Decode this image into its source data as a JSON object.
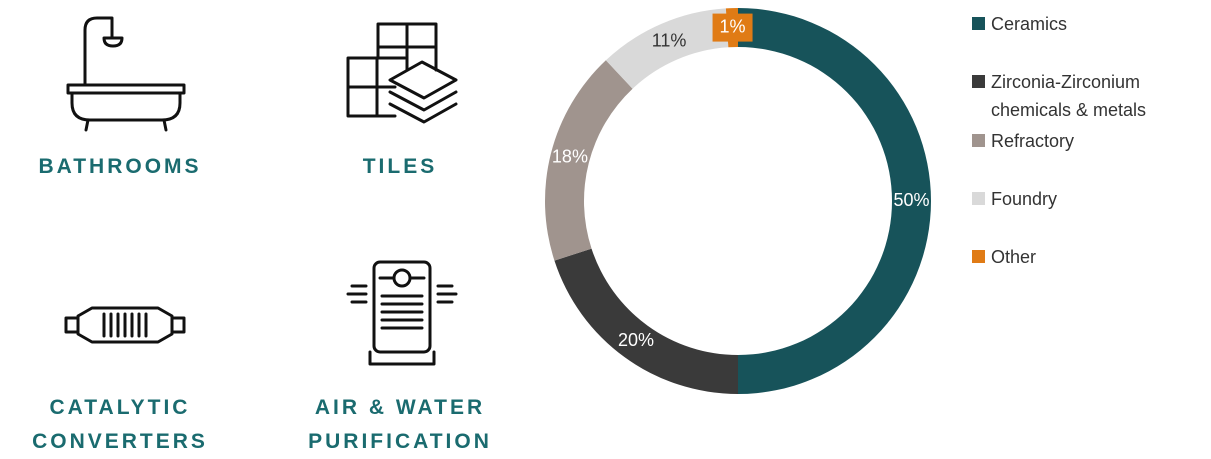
{
  "applications": [
    "BATHROOMS",
    "TILES",
    "CATALYTIC CONVERTERS",
    "AIR & WATER PURIFICATION"
  ],
  "chart_data": {
    "type": "donut",
    "categories": [
      "Ceramics",
      "Zirconia-Zirconium chemicals & metals",
      "Refractory",
      "Foundry",
      "Other"
    ],
    "values": [
      50,
      20,
      18,
      11,
      1
    ],
    "value_labels": [
      "50%",
      "20%",
      "18%",
      "11%",
      "1%"
    ],
    "colors": [
      "#17535a",
      "#3a3a3a",
      "#a0948e",
      "#d9d9d9",
      "#e07b15"
    ],
    "legend": "right"
  }
}
